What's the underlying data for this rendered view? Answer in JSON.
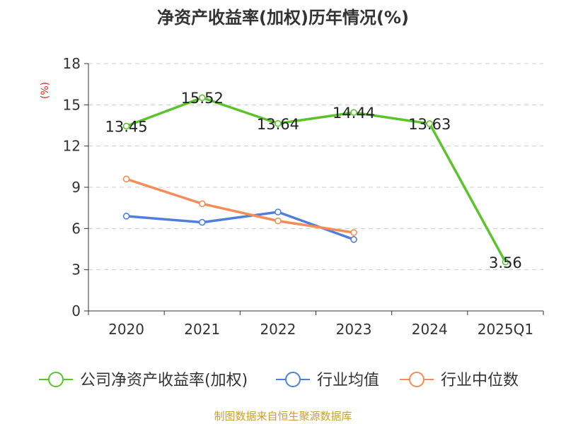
{
  "chart_data": {
    "type": "line",
    "title": "净资产收益率(加权)历年情况(%)",
    "ylabel": "(%)",
    "xlabel": "",
    "categories": [
      "2020",
      "2021",
      "2022",
      "2023",
      "2024",
      "2025Q1"
    ],
    "ylim": [
      0,
      18
    ],
    "yticks": [
      0,
      3,
      6,
      9,
      12,
      15,
      18
    ],
    "grid": true,
    "legend_position": "bottom",
    "series": [
      {
        "name": "公司净资产收益率(加权)",
        "color": "#5bc42b",
        "values": [
          13.45,
          15.52,
          13.64,
          14.44,
          13.63,
          3.56
        ],
        "labels": [
          "13.45",
          "15.52",
          "13.64",
          "14.44",
          "13.63",
          "3.56"
        ],
        "show_labels": true
      },
      {
        "name": "行业均值",
        "color": "#4f7fdb",
        "values": [
          6.9,
          6.45,
          7.2,
          5.2,
          null,
          null
        ],
        "show_labels": false
      },
      {
        "name": "行业中位数",
        "color": "#f58d5a",
        "values": [
          9.6,
          7.8,
          6.55,
          5.7,
          null,
          null
        ],
        "show_labels": false
      }
    ]
  },
  "footer": {
    "source": "制图数据来自恒生聚源数据库",
    "color": "#c8a030"
  }
}
